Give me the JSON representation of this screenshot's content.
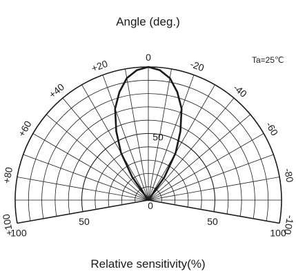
{
  "chart_data": {
    "type": "polar",
    "title": "Angle (deg.)",
    "xlabel": "Relative sensitivity(%)",
    "condition": "Ta=25℃",
    "radial_range": [
      0,
      100
    ],
    "radial_ticks": [
      50,
      100
    ],
    "angle_range": [
      -100,
      100
    ],
    "angle_grid_step": 10,
    "angle_labels": [
      "+100",
      "+80",
      "+60",
      "+40",
      "+20",
      "0",
      "-20",
      "-40",
      "-60",
      "-80",
      "-100"
    ],
    "radius_labels": [
      "0",
      "50",
      "100"
    ],
    "center_label": "50",
    "series": [
      {
        "angle": [
          -40,
          -35,
          -30,
          -25,
          -20,
          -15,
          -10,
          -5,
          0,
          5,
          10,
          15,
          20,
          25,
          30,
          35,
          40
        ],
        "values": [
          0,
          21,
          41,
          57,
          73,
          84,
          93,
          98,
          100,
          98,
          93,
          84,
          73,
          57,
          41,
          21,
          0
        ]
      }
    ],
    "grid": true,
    "colors": {
      "line": "#1a1a1a",
      "grid": "#1a1a1a",
      "background": "#ffffff"
    }
  }
}
